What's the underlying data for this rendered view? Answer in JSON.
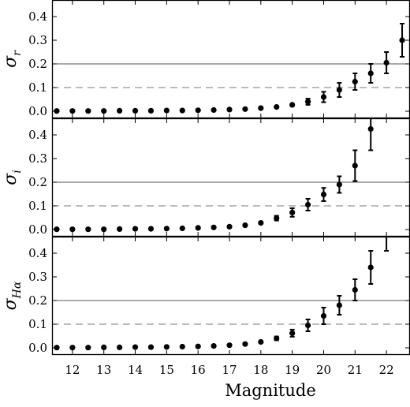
{
  "chart_data": [
    {
      "type": "scatter",
      "ylabel": "σ_r",
      "ylabel_main": "σ",
      "ylabel_sub": "r",
      "ylim": [
        -0.03,
        0.47
      ],
      "yticks": [
        0.0,
        0.1,
        0.2,
        0.3,
        0.4
      ],
      "ytick_labels": [
        "0.0",
        "0.1",
        "0.2",
        "0.3",
        "0.4"
      ],
      "reference_lines": [
        {
          "y": 0.2,
          "style": "solid"
        },
        {
          "y": 0.1,
          "style": "dashed"
        }
      ],
      "series": [
        {
          "x": [
            11.5,
            12.0,
            12.5,
            13.0,
            13.5,
            14.0,
            14.5,
            15.0,
            15.5,
            16.0,
            16.5,
            17.0,
            17.5,
            18.0,
            18.5,
            19.0,
            19.5,
            20.0,
            20.5,
            21.0,
            21.5,
            22.0,
            22.5
          ],
          "y": [
            0.001,
            0.001,
            0.001,
            0.001,
            0.002,
            0.002,
            0.002,
            0.003,
            0.003,
            0.004,
            0.005,
            0.007,
            0.009,
            0.013,
            0.018,
            0.027,
            0.04,
            0.06,
            0.09,
            0.125,
            0.16,
            0.205,
            0.3
          ],
          "err": [
            0,
            0,
            0,
            0,
            0,
            0,
            0,
            0,
            0,
            0,
            0,
            0,
            0,
            0,
            0,
            0.004,
            0.013,
            0.022,
            0.03,
            0.035,
            0.04,
            0.045,
            0.07
          ]
        }
      ]
    },
    {
      "type": "scatter",
      "ylabel": "σ_i",
      "ylabel_main": "σ",
      "ylabel_sub": "i",
      "ylim": [
        -0.03,
        0.47
      ],
      "yticks": [
        0.0,
        0.1,
        0.2,
        0.3,
        0.4
      ],
      "ytick_labels": [
        "0.0",
        "0.1",
        "0.2",
        "0.3",
        "0.4"
      ],
      "reference_lines": [
        {
          "y": 0.2,
          "style": "solid"
        },
        {
          "y": 0.1,
          "style": "dashed"
        }
      ],
      "series": [
        {
          "x": [
            11.5,
            12.0,
            12.5,
            13.0,
            13.5,
            14.0,
            14.5,
            15.0,
            15.5,
            16.0,
            16.5,
            17.0,
            17.5,
            18.0,
            18.5,
            19.0,
            19.5,
            20.0,
            20.5,
            21.0,
            21.5
          ],
          "y": [
            0.001,
            0.001,
            0.001,
            0.001,
            0.002,
            0.003,
            0.003,
            0.004,
            0.005,
            0.007,
            0.009,
            0.012,
            0.018,
            0.028,
            0.048,
            0.072,
            0.105,
            0.148,
            0.19,
            0.27,
            0.425
          ],
          "err": [
            0,
            0,
            0,
            0,
            0,
            0,
            0,
            0,
            0,
            0,
            0,
            0,
            0,
            0,
            0.01,
            0.018,
            0.025,
            0.028,
            0.035,
            0.065,
            0.09
          ]
        }
      ]
    },
    {
      "type": "scatter",
      "ylabel": "σ_Hα",
      "ylabel_main": "σ",
      "ylabel_sub": "Hα",
      "ylim": [
        -0.03,
        0.47
      ],
      "yticks": [
        0.0,
        0.1,
        0.2,
        0.3,
        0.4
      ],
      "ytick_labels": [
        "0.0",
        "0.1",
        "0.2",
        "0.3",
        "0.4"
      ],
      "xlabel": "Magnitude",
      "xlim": [
        11.35,
        22.75
      ],
      "xticks": [
        12,
        13,
        14,
        15,
        16,
        17,
        18,
        19,
        20,
        21,
        22
      ],
      "xtick_labels": [
        "12",
        "13",
        "14",
        "15",
        "16",
        "17",
        "18",
        "19",
        "20",
        "21",
        "22"
      ],
      "reference_lines": [
        {
          "y": 0.2,
          "style": "solid"
        },
        {
          "y": 0.1,
          "style": "dashed"
        }
      ],
      "series": [
        {
          "x": [
            11.5,
            12.0,
            12.5,
            13.0,
            13.5,
            14.0,
            14.5,
            15.0,
            15.5,
            16.0,
            16.5,
            17.0,
            17.5,
            18.0,
            18.5,
            19.0,
            19.5,
            20.0,
            20.5,
            21.0,
            21.5,
            22.0
          ],
          "y": [
            0.001,
            0.001,
            0.001,
            0.002,
            0.002,
            0.003,
            0.003,
            0.004,
            0.005,
            0.006,
            0.008,
            0.011,
            0.016,
            0.025,
            0.04,
            0.062,
            0.095,
            0.135,
            0.18,
            0.245,
            0.34,
            0.49
          ],
          "err": [
            0,
            0,
            0,
            0,
            0,
            0,
            0,
            0,
            0,
            0,
            0,
            0,
            0,
            0,
            0.008,
            0.015,
            0.025,
            0.035,
            0.04,
            0.045,
            0.07,
            0.08
          ]
        }
      ]
    }
  ]
}
